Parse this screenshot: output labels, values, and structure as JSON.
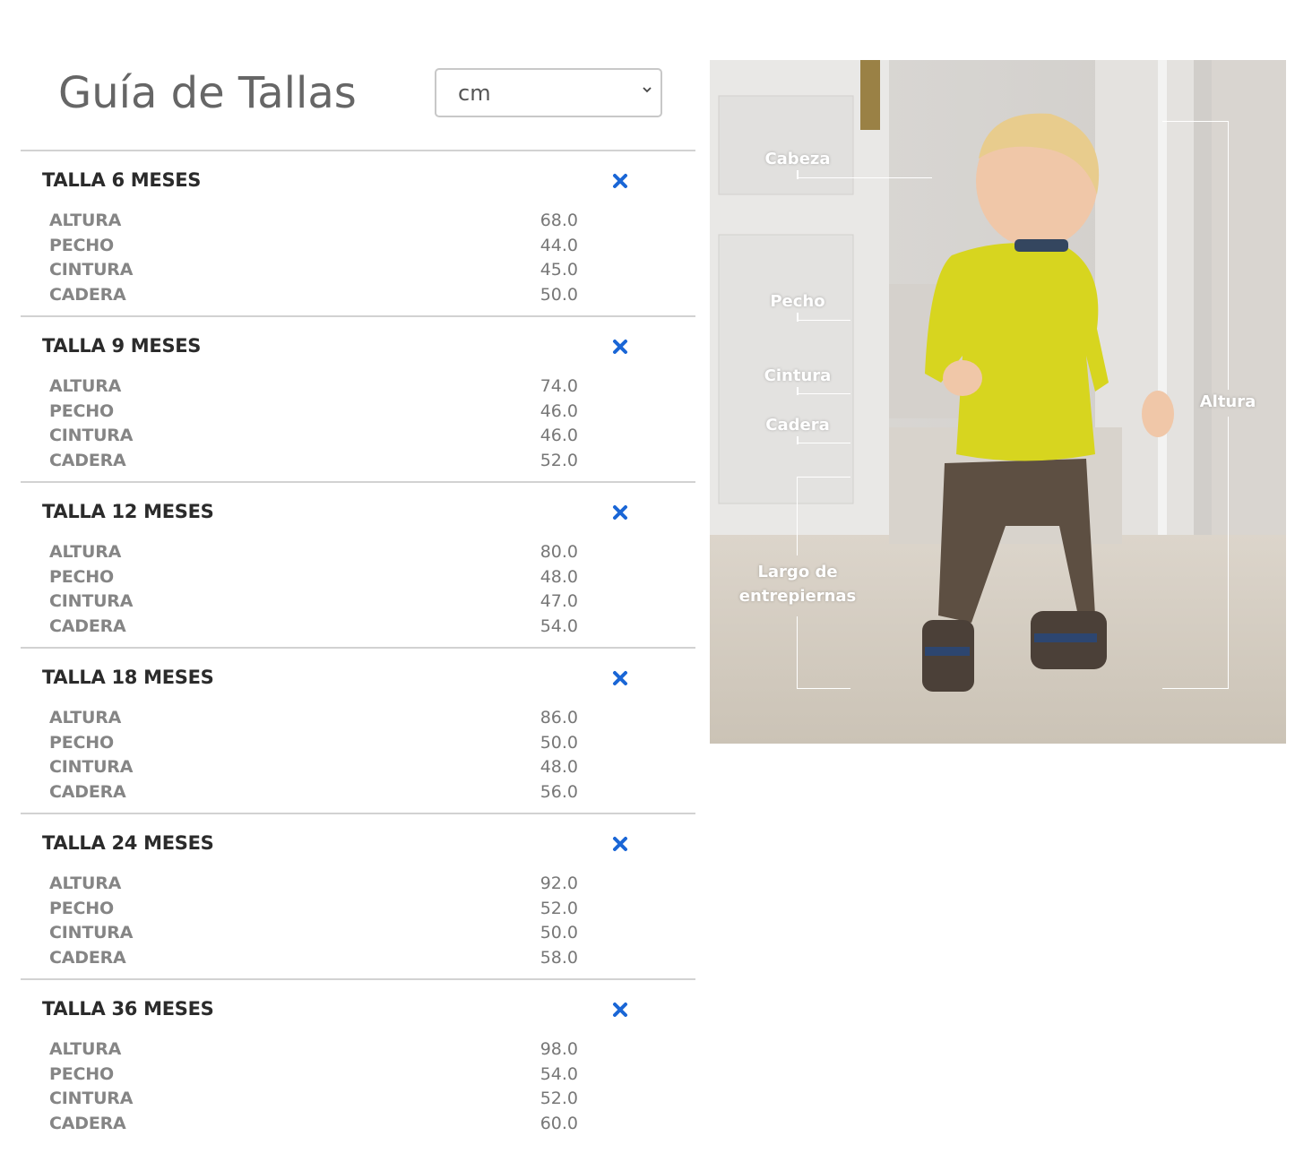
{
  "header": {
    "title": "Guía de Tallas",
    "unit_select": {
      "value": "cm"
    }
  },
  "close_icon": "close-x-icon",
  "accent_color": "#1a66d6",
  "sizes": [
    {
      "title": "TALLA 6 MESES",
      "rows": [
        {
          "label": "ALTURA",
          "value": "68.0"
        },
        {
          "label": "PECHO",
          "value": "44.0"
        },
        {
          "label": "CINTURA",
          "value": "45.0"
        },
        {
          "label": "CADERA",
          "value": "50.0"
        }
      ]
    },
    {
      "title": "TALLA 9 MESES",
      "rows": [
        {
          "label": "ALTURA",
          "value": "74.0"
        },
        {
          "label": "PECHO",
          "value": "46.0"
        },
        {
          "label": "CINTURA",
          "value": "46.0"
        },
        {
          "label": "CADERA",
          "value": "52.0"
        }
      ]
    },
    {
      "title": "TALLA 12 MESES",
      "rows": [
        {
          "label": "ALTURA",
          "value": "80.0"
        },
        {
          "label": "PECHO",
          "value": "48.0"
        },
        {
          "label": "CINTURA",
          "value": "47.0"
        },
        {
          "label": "CADERA",
          "value": "54.0"
        }
      ]
    },
    {
      "title": "TALLA 18 MESES",
      "rows": [
        {
          "label": "ALTURA",
          "value": "86.0"
        },
        {
          "label": "PECHO",
          "value": "50.0"
        },
        {
          "label": "CINTURA",
          "value": "48.0"
        },
        {
          "label": "CADERA",
          "value": "56.0"
        }
      ]
    },
    {
      "title": "TALLA 24 MESES",
      "rows": [
        {
          "label": "ALTURA",
          "value": "92.0"
        },
        {
          "label": "PECHO",
          "value": "52.0"
        },
        {
          "label": "CINTURA",
          "value": "50.0"
        },
        {
          "label": "CADERA",
          "value": "58.0"
        }
      ]
    },
    {
      "title": "TALLA 36 MESES",
      "rows": [
        {
          "label": "ALTURA",
          "value": "98.0"
        },
        {
          "label": "PECHO",
          "value": "54.0"
        },
        {
          "label": "CINTURA",
          "value": "52.0"
        },
        {
          "label": "CADERA",
          "value": "60.0"
        }
      ]
    }
  ],
  "photo": {
    "labels": {
      "cabeza": "Cabeza",
      "pecho": "Pecho",
      "cintura": "Cintura",
      "cadera": "Cadera",
      "largo_1": "Largo de",
      "largo_2": "entrepiernas",
      "altura": "Altura"
    }
  }
}
